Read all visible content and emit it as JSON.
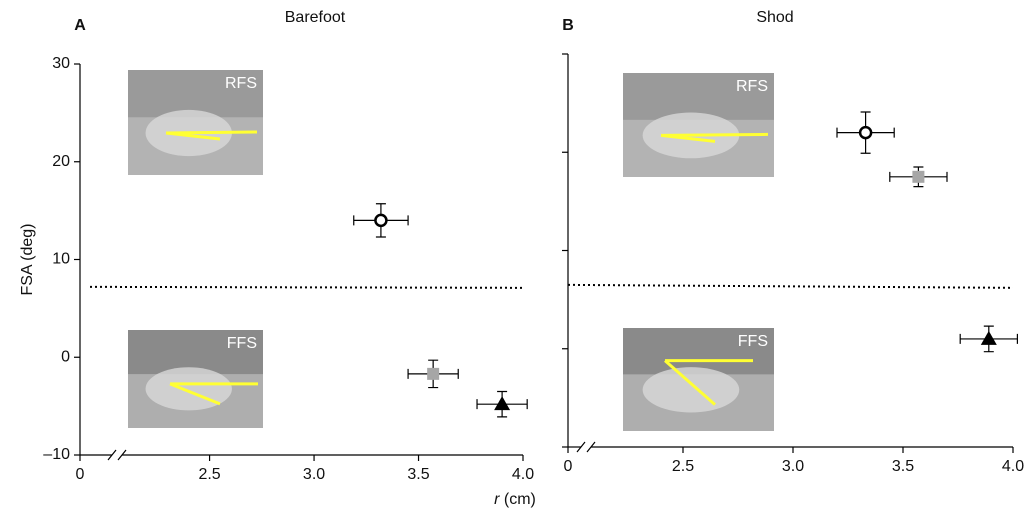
{
  "chart_data": [
    {
      "type": "scatter",
      "panel_label": "A",
      "title": "Barefoot",
      "ylabel": "FSA (deg)",
      "xlim": [
        0,
        4.0
      ],
      "xbreak": 2.1,
      "xticks": [
        0,
        2.5,
        {
          "value": 3,
          "label": "3.0"
        },
        3.5,
        {
          "value": 4,
          "label": "4.0"
        }
      ],
      "ylim": [
        -10,
        30
      ],
      "yticks": [
        {
          "value": -10,
          "label": "–10"
        },
        0,
        10,
        20,
        30
      ],
      "show_ytick_labels": true,
      "reference_line": [
        7.2,
        7.1
      ],
      "insets": [
        {
          "label": "RFS"
        },
        {
          "label": "FFS"
        }
      ],
      "series": [
        {
          "marker": "circle",
          "color": "#000000",
          "x": [
            3.32
          ],
          "values": [
            14.0
          ],
          "xerr": [
            0.13
          ],
          "yerr": [
            1.7
          ]
        },
        {
          "marker": "square",
          "color": "#a6a6a6",
          "x": [
            3.57
          ],
          "values": [
            -1.7
          ],
          "xerr": [
            0.12
          ],
          "yerr": [
            1.4
          ]
        },
        {
          "marker": "triangle",
          "color": "#000000",
          "x": [
            3.9
          ],
          "values": [
            -4.8
          ],
          "xerr": [
            0.12
          ],
          "yerr": [
            1.3
          ]
        }
      ]
    },
    {
      "type": "scatter",
      "panel_label": "B",
      "title": "Shod",
      "xlim": [
        0,
        4.0
      ],
      "xbreak": 2.1,
      "xticks": [
        0,
        2.5,
        {
          "value": 3,
          "label": "3.0"
        },
        3.5,
        {
          "value": 4,
          "label": "4.0"
        }
      ],
      "ylim": [
        -10,
        30
      ],
      "yticks": [
        -10,
        0,
        10,
        20,
        30
      ],
      "show_ytick_labels": false,
      "reference_line": [
        6.5,
        6.2
      ],
      "insets": [
        {
          "label": "RFS"
        },
        {
          "label": "FFS"
        }
      ],
      "series": [
        {
          "marker": "circle",
          "color": "#000000",
          "x": [
            3.33
          ],
          "values": [
            22.0
          ],
          "xerr": [
            0.13
          ],
          "yerr": [
            2.1
          ]
        },
        {
          "marker": "square",
          "color": "#a6a6a6",
          "x": [
            3.57
          ],
          "values": [
            17.5
          ],
          "xerr": [
            0.13
          ],
          "yerr": [
            1.0
          ]
        },
        {
          "marker": "triangle",
          "color": "#000000",
          "x": [
            3.89
          ],
          "values": [
            1.0
          ],
          "xerr": [
            0.13
          ],
          "yerr": [
            1.3
          ]
        }
      ]
    }
  ],
  "x_axis": {
    "variable": "r",
    "unit": "(cm)"
  }
}
